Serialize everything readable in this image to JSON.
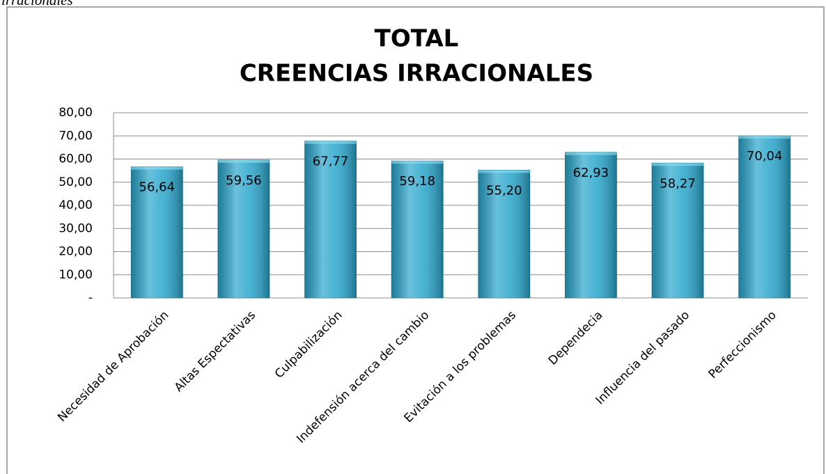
{
  "caption": "irracionales",
  "chart_data": {
    "type": "bar",
    "title": "TOTAL",
    "subtitle": "CREENCIAS IRRACIONALES",
    "categories": [
      "Necesidad de Aprobación",
      "Altas Espectativas",
      "Culpabilización",
      "Indefensión acerca del cambio",
      "Evitación a los problemas",
      "Dependecia",
      "Influencia del pasado",
      "Perfeccionismo"
    ],
    "values": [
      56.64,
      59.56,
      67.77,
      59.18,
      55.2,
      62.93,
      58.27,
      70.04
    ],
    "value_labels": [
      "56,64",
      "59,56",
      "67,77",
      "59,18",
      "55,20",
      "62,93",
      "58,27",
      "70,04"
    ],
    "color": "#2aa6cc",
    "ylim": [
      0,
      80
    ],
    "yticks": [
      {
        "value": 0,
        "label": "-"
      },
      {
        "value": 10,
        "label": "10,00"
      },
      {
        "value": 20,
        "label": "20,00"
      },
      {
        "value": 30,
        "label": "30,00"
      },
      {
        "value": 40,
        "label": "40,00"
      },
      {
        "value": 50,
        "label": "50,00"
      },
      {
        "value": 60,
        "label": "60,00"
      },
      {
        "value": 70,
        "label": "70,00"
      },
      {
        "value": 80,
        "label": "80,00"
      }
    ],
    "grid": true
  }
}
